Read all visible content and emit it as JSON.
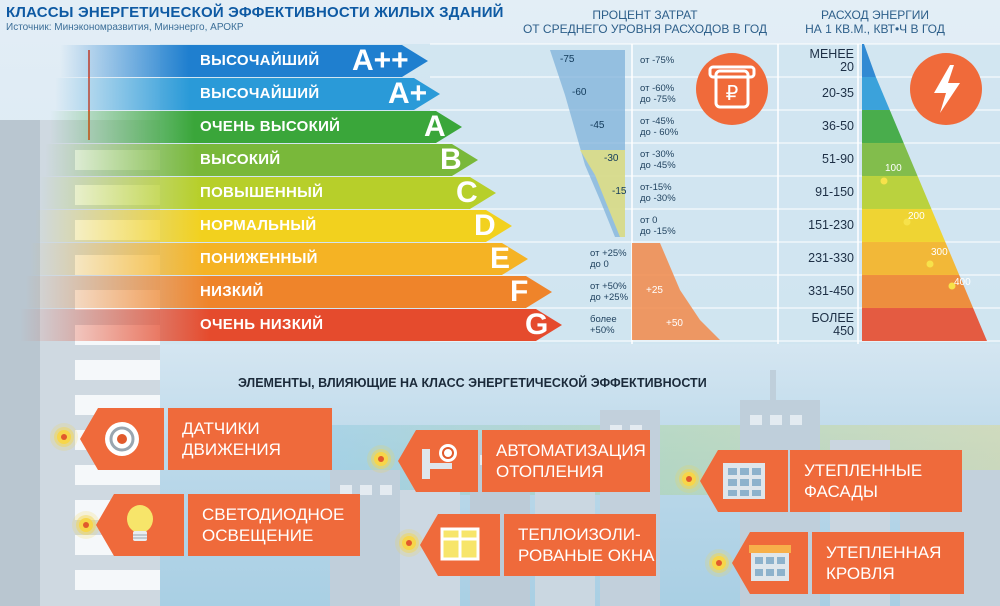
{
  "header": {
    "title": "КЛАССЫ ЭНЕРГЕТИЧЕСКОЙ ЭФФЕКТИВНОСТИ ЖИЛЫХ ЗДАНИЙ",
    "source": "Источник: Минэкономразвития, Минэнерго, АРОКР"
  },
  "columns": {
    "cost_line1": "ПРОЦЕНТ ЗАТРАТ",
    "cost_line2": "ОТ СРЕДНЕГО УРОВНЯ РАСХОДОВ В ГОД",
    "energy_line1": "РАСХОД ЭНЕРГИИ",
    "energy_line2": "НА 1 КВ.М., КВТ•Ч В ГОД"
  },
  "colors": {
    "title": "#0e5aa3",
    "accent": "#ef6a3b",
    "class_colors": [
      "#1f7fcf",
      "#2a9ad8",
      "#3aa63a",
      "#79b83a",
      "#b7cf2a",
      "#f2d11e",
      "#f5b324",
      "#ef842a",
      "#e54b2d"
    ]
  },
  "classes": [
    {
      "name": "ВЫСОЧАЙШИЙ",
      "letter": "A++",
      "cost_from": "от -75%",
      "cost_to": "",
      "marker": "-75",
      "energy_line1": "МЕНЕЕ",
      "energy_line2": "20"
    },
    {
      "name": "ВЫСОЧАЙШИЙ",
      "letter": "A+",
      "cost_from": "от -60%",
      "cost_to": "до -75%",
      "marker": "-60",
      "energy_line1": "20-35",
      "energy_line2": ""
    },
    {
      "name": "ОЧЕНЬ ВЫСОКИЙ",
      "letter": "A",
      "cost_from": "от -45%",
      "cost_to": "до - 60%",
      "marker": "-45",
      "energy_line1": "36-50",
      "energy_line2": ""
    },
    {
      "name": "ВЫСОКИЙ",
      "letter": "B",
      "cost_from": "от -30%",
      "cost_to": "до -45%",
      "marker": "-30",
      "energy_line1": "51-90",
      "energy_line2": ""
    },
    {
      "name": "ПОВЫШЕННЫЙ",
      "letter": "C",
      "cost_from": "от-15%",
      "cost_to": "до -30%",
      "marker": "-15",
      "energy_line1": "91-150",
      "energy_line2": ""
    },
    {
      "name": "НОРМАЛЬНЫЙ",
      "letter": "D",
      "cost_from": "от 0",
      "cost_to": "до -15%",
      "marker": "",
      "energy_line1": "151-230",
      "energy_line2": ""
    },
    {
      "name": "ПОНИЖЕННЫЙ",
      "letter": "E",
      "cost_from": "от +25%",
      "cost_to": "до 0",
      "marker": "",
      "energy_line1": "231-330",
      "energy_line2": ""
    },
    {
      "name": "НИЗКИЙ",
      "letter": "F",
      "cost_from": "от +50%",
      "cost_to": "до +25%",
      "marker": "+25",
      "energy_line1": "331-450",
      "energy_line2": ""
    },
    {
      "name": "ОЧЕНЬ НИЗКИЙ",
      "letter": "G",
      "cost_from": "более",
      "cost_to": "+50%",
      "marker": "+50",
      "energy_line1": "БОЛЕЕ",
      "energy_line2": "450"
    }
  ],
  "energy_markers": [
    "100",
    "200",
    "300",
    "400"
  ],
  "icons": {
    "cost": "ruble-card-icon",
    "energy": "lightning-icon"
  },
  "factors": {
    "title": "ЭЛЕМЕНТЫ, ВЛИЯЮЩИЕ НА КЛАСС ЭНЕРГЕТИЧЕСКОЙ ЭФФЕКТИВНОСТИ",
    "items": [
      {
        "line1": "ДАТЧИКИ",
        "line2": "ДВИЖЕНИЯ",
        "icon": "motion-sensor-icon"
      },
      {
        "line1": "СВЕТОДИОДНОЕ",
        "line2": "ОСВЕЩЕНИЕ",
        "icon": "light-bulb-icon"
      },
      {
        "line1": "АВТОМАТИЗАЦИЯ",
        "line2": "ОТОПЛЕНИЯ",
        "icon": "heating-valve-icon"
      },
      {
        "line1": "ТЕПЛОИЗОЛИ-",
        "line2": "РОВАНЫЕ ОКНА",
        "icon": "window-icon"
      },
      {
        "line1": "УТЕПЛЕННЫЕ",
        "line2": "ФАСАДЫ",
        "icon": "facade-icon"
      },
      {
        "line1": "УТЕПЛЕННАЯ",
        "line2": "КРОВЛЯ",
        "icon": "roof-icon"
      }
    ]
  }
}
